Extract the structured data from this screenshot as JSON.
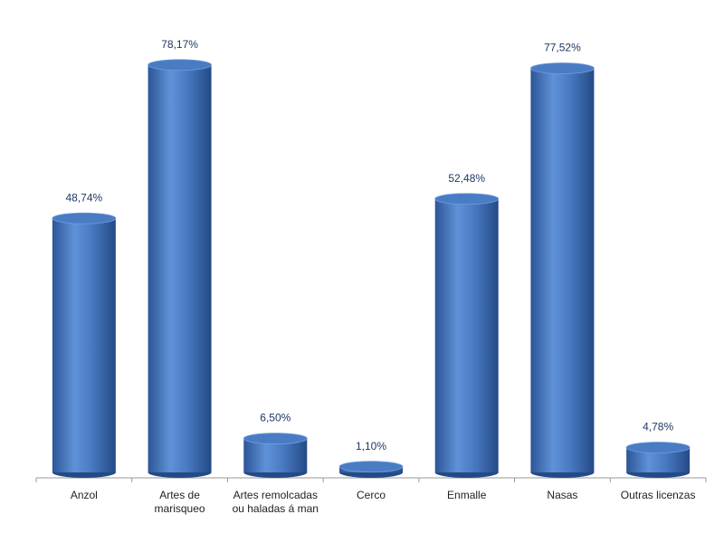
{
  "chart_data": {
    "type": "bar",
    "categories": [
      "Anzol",
      "Artes de marisqueo",
      "Artes remolcadas ou haladas  á man",
      "Cerco",
      "Enmalle",
      "Nasas",
      "Outras licenzas"
    ],
    "values": [
      48.74,
      78.17,
      6.5,
      1.1,
      52.48,
      77.52,
      4.78
    ],
    "value_labels": [
      "48,74%",
      "78,17%",
      "6,50%",
      "1,10%",
      "52,48%",
      "77,52%",
      "4,78%"
    ],
    "color": "#4a7cc4"
  }
}
